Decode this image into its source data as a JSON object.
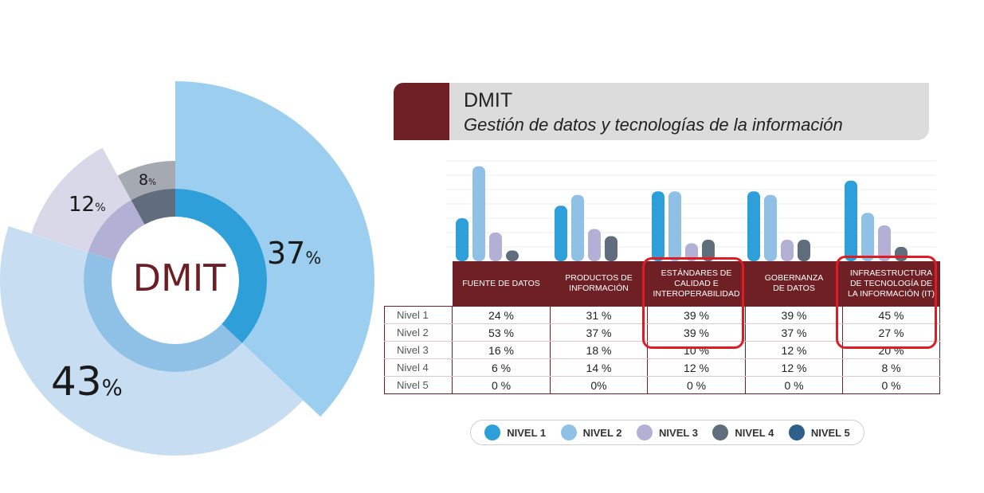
{
  "donut": {
    "center_label": "DMIT",
    "labels": {
      "nivel1": "37",
      "nivel2": "43",
      "nivel3": "12",
      "nivel4": "8",
      "percent_sign": "%"
    }
  },
  "banner": {
    "title": "DMIT",
    "subtitle": "Gestión de datos y tecnologías de la información"
  },
  "colors": {
    "nivel1": "#2e9fd8",
    "nivel2": "#8fc1e6",
    "nivel3": "#b2b0d4",
    "nivel4": "#5f6d7c",
    "nivel5": "#2d5f8a",
    "donut_outer1": "#9ccfef",
    "donut_outer2": "#c7def2",
    "donut_outer3": "#d9d8e8",
    "donut_outer4": "#a4a9b2",
    "maroon": "#6e2024",
    "highlight": "#e01b24"
  },
  "chart_data": [
    {
      "type": "pie",
      "title": "DMIT",
      "categories": [
        "Nivel 1",
        "Nivel 2",
        "Nivel 3",
        "Nivel 4"
      ],
      "values": [
        37,
        43,
        12,
        8
      ]
    },
    {
      "type": "bar",
      "title": "DMIT",
      "subtitle": "Gestión de datos y tecnologías de la información",
      "categories": [
        "FUENTE DE DATOS",
        "PRODUCTOS DE INFORMACIÓN",
        "ESTÁNDARES DE CALIDAD E INTEROPERABILIDAD",
        "GOBERNANZA DE DATOS",
        "INFRAESTRUCTURA DE TECNOLOGÍA DE LA INFORMACIÓN (IT)"
      ],
      "series": [
        {
          "name": "NIVEL 1",
          "values": [
            24,
            31,
            39,
            39,
            45
          ]
        },
        {
          "name": "NIVEL 2",
          "values": [
            53,
            37,
            39,
            37,
            27
          ]
        },
        {
          "name": "NIVEL 3",
          "values": [
            16,
            18,
            10,
            12,
            20
          ]
        },
        {
          "name": "NIVEL 4",
          "values": [
            6,
            14,
            12,
            12,
            8
          ]
        },
        {
          "name": "NIVEL 5",
          "values": [
            0,
            0,
            0,
            0,
            0
          ]
        }
      ],
      "legend": "bottom"
    }
  ],
  "table": {
    "headers": [
      [
        "FUENTE DE DATOS"
      ],
      [
        "PRODUCTOS DE",
        "INFORMACIÓN"
      ],
      [
        "ESTÁNDARES DE",
        "CALIDAD E",
        "INTEROPERABILIDAD"
      ],
      [
        "GOBERNANZA",
        "DE DATOS"
      ],
      [
        "INFRAESTRUCTURA",
        "DE TECNOLOGÍA DE",
        "LA INFORMACIÓN (IT)"
      ]
    ],
    "rows": [
      {
        "label": "Nivel 1",
        "cells": [
          "24 %",
          "31 %",
          "39 %",
          "39 %",
          "45 %"
        ]
      },
      {
        "label": "Nivel 2",
        "cells": [
          "53 %",
          "37 %",
          "39 %",
          "37 %",
          "27 %"
        ]
      },
      {
        "label": "Nivel 3",
        "cells": [
          "16 %",
          "18 %",
          "10 %",
          "12 %",
          "20 %"
        ]
      },
      {
        "label": "Nivel 4",
        "cells": [
          "6 %",
          "14 %",
          "12 %",
          "12 %",
          "8 %"
        ]
      },
      {
        "label": "Nivel 5",
        "cells": [
          "0 %",
          "0%",
          "0 %",
          "0 %",
          "0 %"
        ]
      }
    ]
  },
  "legend": [
    {
      "label": "NIVEL 1",
      "color": "#2e9fd8"
    },
    {
      "label": "NIVEL 2",
      "color": "#8fc1e6"
    },
    {
      "label": "NIVEL 3",
      "color": "#b2b0d4"
    },
    {
      "label": "NIVEL 4",
      "color": "#5f6d7c"
    },
    {
      "label": "NIVEL 5",
      "color": "#2d5f8a"
    }
  ]
}
